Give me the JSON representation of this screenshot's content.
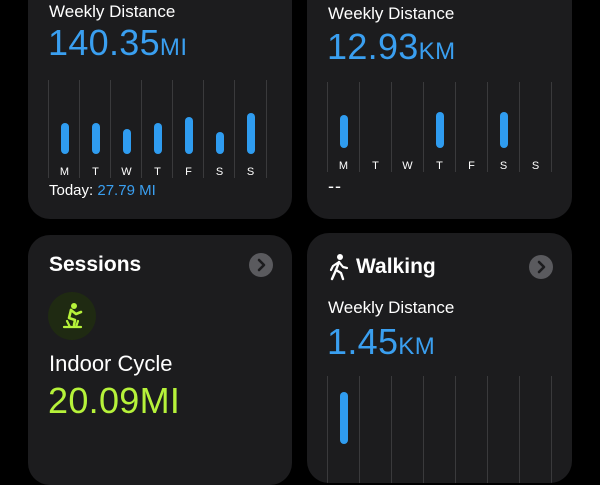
{
  "card_left": {
    "label": "Weekly Distance",
    "value": "140.35",
    "unit": "MI",
    "days": [
      "M",
      "T",
      "W",
      "T",
      "F",
      "S",
      "S"
    ],
    "bar_levels": [
      0.38,
      0.38,
      0.3,
      0.38,
      0.45,
      0.27,
      0.5
    ],
    "today_label": "Today:",
    "today_value": "27.79 MI"
  },
  "card_right": {
    "label": "Weekly Distance",
    "value": "12.93",
    "unit": "KM",
    "days": [
      "M",
      "T",
      "W",
      "T",
      "F",
      "S",
      "S"
    ],
    "bar_levels": [
      0.45,
      0,
      0,
      0.48,
      0,
      0.48,
      0
    ],
    "today_placeholder": "--"
  },
  "sessions": {
    "title": "Sessions",
    "activity": "Indoor Cycle",
    "value": "20.09",
    "unit": "MI",
    "icon": "indoor-cycle-icon"
  },
  "walking": {
    "title": "Walking",
    "label": "Weekly Distance",
    "value": "1.45",
    "unit": "KM",
    "icon": "walking-icon"
  },
  "colors": {
    "accent_blue": "#2f9cf0",
    "accent_green": "#b6f23a",
    "card_bg": "#1c1c1e"
  }
}
